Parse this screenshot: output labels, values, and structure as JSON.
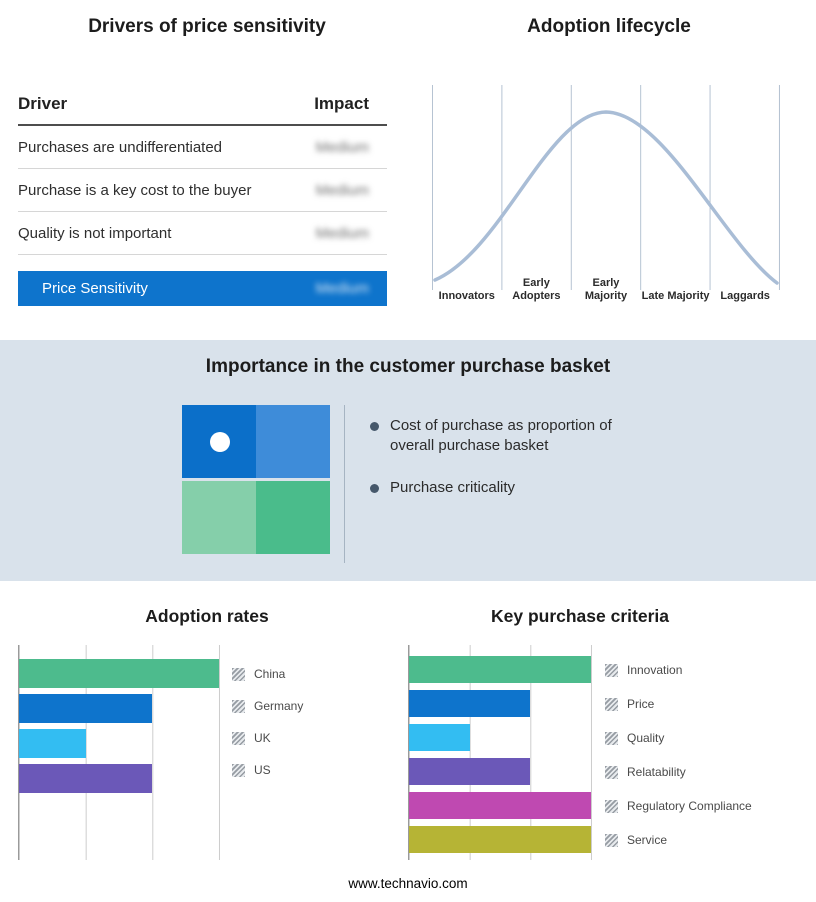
{
  "page": {
    "footer": "www.technavio.com"
  },
  "drivers": {
    "title": "Drivers of price sensitivity",
    "columns": {
      "driver": "Driver",
      "impact": "Impact"
    },
    "rows": [
      {
        "driver": "Purchases are undifferentiated",
        "impact": "Medium"
      },
      {
        "driver": "Purchase is a key cost to the buyer",
        "impact": "Medium"
      },
      {
        "driver": "Quality is not important",
        "impact": "Medium"
      }
    ],
    "summary": {
      "label": "Price Sensitivity",
      "impact": "Medium",
      "color": "#0e74cc"
    }
  },
  "basket": {
    "title": "Importance in the customer purchase basket",
    "bullets": [
      "Cost of purchase as proportion of overall purchase basket",
      "Purchase criticality"
    ],
    "quadrant_colors": {
      "top_left": "#0b6fc9",
      "top_right": "#3e8cd9",
      "bottom_left": "#85cfaa",
      "bottom_right": "#4abc8b"
    },
    "background": "#d9e2eb"
  },
  "chart_data": [
    {
      "type": "bar",
      "title": "Adoption rates",
      "orientation": "horizontal",
      "categories": [
        "China",
        "Germany",
        "UK",
        "US"
      ],
      "values": [
        3,
        2,
        1,
        2
      ],
      "xlim": [
        0,
        3
      ],
      "grid": true,
      "legend_position": "right",
      "colors": [
        "#4dbb8d",
        "#0e74cc",
        "#33bdf2",
        "#6b58b8"
      ]
    },
    {
      "type": "bar",
      "title": "Key purchase criteria",
      "orientation": "horizontal",
      "categories": [
        "Innovation",
        "Price",
        "Quality",
        "Relatability",
        "Regulatory Compliance",
        "Service"
      ],
      "values": [
        3,
        2,
        1,
        2,
        3,
        3
      ],
      "xlim": [
        0,
        3
      ],
      "grid": true,
      "legend_position": "right",
      "colors": [
        "#4dbb8d",
        "#0e74cc",
        "#33bdf2",
        "#6b58b8",
        "#bf49b1",
        "#b6b435"
      ]
    },
    {
      "type": "line",
      "title": "Adoption lifecycle",
      "shape": "bell-curve",
      "categories": [
        "Innovators",
        "Early Adopters",
        "Early Majority",
        "Late Majority",
        "Laggards"
      ],
      "values": [
        10,
        55,
        98,
        60,
        12
      ],
      "ylim": [
        0,
        100
      ],
      "grid": true,
      "line_color": "#a9bdd6"
    }
  ]
}
